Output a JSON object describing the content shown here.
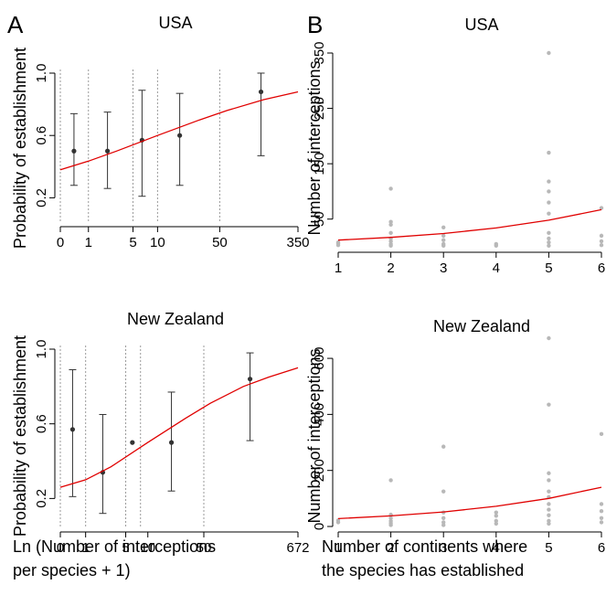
{
  "figure": {
    "panel_labels": [
      "A",
      "B"
    ],
    "xlabel_a_line1": "Ln (Number of interceptions",
    "xlabel_a_line2": "per species + 1)",
    "xlabel_b_line1": "Number of continents where",
    "xlabel_b_line2": "the species has established"
  },
  "chart_data": [
    {
      "id": "A-USA",
      "type": "scatter",
      "title": "USA",
      "ylabel": "Probability of establishment",
      "xlabel": "",
      "x_scale": "log(x+1)",
      "xlim": [
        0,
        350
      ],
      "ylim": [
        0.05,
        1.0
      ],
      "x_ticks": [
        0,
        1,
        5,
        10,
        50,
        350
      ],
      "x_tick_labels": [
        "0",
        "1",
        "5",
        "10",
        "50",
        "350"
      ],
      "y_ticks": [
        0.2,
        0.6,
        1.0
      ],
      "y_tick_labels": [
        "0.2",
        "0.6",
        "1.0"
      ],
      "bin_edges": [
        0,
        1,
        5,
        10,
        50
      ],
      "points": [
        {
          "x": 0.4,
          "y": 0.5,
          "lo": 0.28,
          "hi": 0.74
        },
        {
          "x": 2.2,
          "y": 0.5,
          "lo": 0.26,
          "hi": 0.75
        },
        {
          "x": 6.5,
          "y": 0.57,
          "lo": 0.21,
          "hi": 0.89
        },
        {
          "x": 18,
          "y": 0.6,
          "lo": 0.28,
          "hi": 0.87
        },
        {
          "x": 140,
          "y": 0.88,
          "lo": 0.47,
          "hi": 1.0
        }
      ],
      "fit": [
        {
          "x": 0,
          "y": 0.38
        },
        {
          "x": 1,
          "y": 0.435
        },
        {
          "x": 3,
          "y": 0.5
        },
        {
          "x": 10,
          "y": 0.6
        },
        {
          "x": 30,
          "y": 0.7
        },
        {
          "x": 60,
          "y": 0.76
        },
        {
          "x": 150,
          "y": 0.83
        },
        {
          "x": 350,
          "y": 0.88
        }
      ]
    },
    {
      "id": "B-USA",
      "type": "scatter",
      "title": "USA",
      "ylabel": "Number of interceptions",
      "xlabel": "",
      "xlim": [
        1,
        6
      ],
      "ylim": [
        0,
        350
      ],
      "x_ticks": [
        1,
        2,
        3,
        4,
        5,
        6
      ],
      "y_ticks": [
        50,
        150,
        250,
        350
      ],
      "points": [
        {
          "x": 1,
          "y": 3
        },
        {
          "x": 1,
          "y": 6
        },
        {
          "x": 1,
          "y": 8
        },
        {
          "x": 2,
          "y": 2
        },
        {
          "x": 2,
          "y": 5
        },
        {
          "x": 2,
          "y": 10
        },
        {
          "x": 2,
          "y": 15
        },
        {
          "x": 2,
          "y": 25
        },
        {
          "x": 2,
          "y": 40
        },
        {
          "x": 2,
          "y": 45
        },
        {
          "x": 2,
          "y": 105
        },
        {
          "x": 3,
          "y": 2
        },
        {
          "x": 3,
          "y": 5
        },
        {
          "x": 3,
          "y": 12
        },
        {
          "x": 3,
          "y": 20
        },
        {
          "x": 3,
          "y": 35
        },
        {
          "x": 4,
          "y": 2
        },
        {
          "x": 4,
          "y": 5
        },
        {
          "x": 5,
          "y": 2
        },
        {
          "x": 5,
          "y": 8
        },
        {
          "x": 5,
          "y": 15
        },
        {
          "x": 5,
          "y": 25
        },
        {
          "x": 5,
          "y": 60
        },
        {
          "x": 5,
          "y": 80
        },
        {
          "x": 5,
          "y": 100
        },
        {
          "x": 5,
          "y": 118
        },
        {
          "x": 5,
          "y": 170
        },
        {
          "x": 5,
          "y": 350
        },
        {
          "x": 6,
          "y": 3
        },
        {
          "x": 6,
          "y": 10
        },
        {
          "x": 6,
          "y": 20
        },
        {
          "x": 6,
          "y": 70
        }
      ],
      "fit": [
        {
          "x": 1,
          "y": 12
        },
        {
          "x": 2,
          "y": 17
        },
        {
          "x": 3,
          "y": 24
        },
        {
          "x": 4,
          "y": 34
        },
        {
          "x": 5,
          "y": 48
        },
        {
          "x": 6,
          "y": 67
        }
      ]
    },
    {
      "id": "A-NZ",
      "type": "scatter",
      "title": "New Zealand",
      "ylabel": "Probability of establishment",
      "xlabel": "Ln (Number of interceptions per species + 1)",
      "x_scale": "log(x+1)",
      "xlim": [
        0,
        672
      ],
      "ylim": [
        0.05,
        1.0
      ],
      "x_ticks": [
        0,
        1,
        5,
        10,
        50,
        672
      ],
      "x_tick_labels": [
        "0",
        "1",
        "5",
        "10",
        "50",
        "672"
      ],
      "y_ticks": [
        0.2,
        0.6,
        1.0
      ],
      "y_tick_labels": [
        "0.2",
        "0.6",
        "1.0"
      ],
      "bin_edges": [
        0,
        1,
        5,
        8,
        50
      ],
      "points": [
        {
          "x": 0.4,
          "y": 0.57,
          "lo": 0.21,
          "hi": 0.89
        },
        {
          "x": 2.2,
          "y": 0.34,
          "lo": 0.12,
          "hi": 0.65
        },
        {
          "x": 6.2,
          "y": 0.5,
          "lo": 0.5,
          "hi": 0.5
        },
        {
          "x": 20,
          "y": 0.5,
          "lo": 0.24,
          "hi": 0.77
        },
        {
          "x": 180,
          "y": 0.84,
          "lo": 0.51,
          "hi": 0.98
        }
      ],
      "fit": [
        {
          "x": 0,
          "y": 0.26
        },
        {
          "x": 1,
          "y": 0.3
        },
        {
          "x": 3,
          "y": 0.37
        },
        {
          "x": 10,
          "y": 0.5
        },
        {
          "x": 30,
          "y": 0.63
        },
        {
          "x": 60,
          "y": 0.71
        },
        {
          "x": 150,
          "y": 0.8
        },
        {
          "x": 300,
          "y": 0.85
        },
        {
          "x": 672,
          "y": 0.9
        }
      ]
    },
    {
      "id": "B-NZ",
      "type": "scatter",
      "title": "New Zealand",
      "ylabel": "Number of interceptions",
      "xlabel": "Number of continents where the species has established",
      "xlim": [
        1,
        6
      ],
      "ylim": [
        0,
        672
      ],
      "x_ticks": [
        1,
        2,
        3,
        4,
        5,
        6
      ],
      "y_ticks": [
        0,
        200,
        400,
        600
      ],
      "points": [
        {
          "x": 1,
          "y": 15
        },
        {
          "x": 1,
          "y": 22
        },
        {
          "x": 2,
          "y": 5
        },
        {
          "x": 2,
          "y": 12
        },
        {
          "x": 2,
          "y": 20
        },
        {
          "x": 2,
          "y": 30
        },
        {
          "x": 2,
          "y": 42
        },
        {
          "x": 2,
          "y": 165
        },
        {
          "x": 3,
          "y": 5
        },
        {
          "x": 3,
          "y": 15
        },
        {
          "x": 3,
          "y": 30
        },
        {
          "x": 3,
          "y": 50
        },
        {
          "x": 3,
          "y": 125
        },
        {
          "x": 3,
          "y": 285
        },
        {
          "x": 4,
          "y": 10
        },
        {
          "x": 4,
          "y": 20
        },
        {
          "x": 4,
          "y": 38
        },
        {
          "x": 4,
          "y": 50
        },
        {
          "x": 5,
          "y": 10
        },
        {
          "x": 5,
          "y": 20
        },
        {
          "x": 5,
          "y": 40
        },
        {
          "x": 5,
          "y": 60
        },
        {
          "x": 5,
          "y": 80
        },
        {
          "x": 5,
          "y": 105
        },
        {
          "x": 5,
          "y": 125
        },
        {
          "x": 5,
          "y": 165
        },
        {
          "x": 5,
          "y": 190
        },
        {
          "x": 5,
          "y": 435
        },
        {
          "x": 5,
          "y": 672
        },
        {
          "x": 6,
          "y": 15
        },
        {
          "x": 6,
          "y": 30
        },
        {
          "x": 6,
          "y": 55
        },
        {
          "x": 6,
          "y": 80
        },
        {
          "x": 6,
          "y": 330
        }
      ],
      "fit": [
        {
          "x": 1,
          "y": 28
        },
        {
          "x": 2,
          "y": 38
        },
        {
          "x": 3,
          "y": 52
        },
        {
          "x": 4,
          "y": 72
        },
        {
          "x": 5,
          "y": 100
        },
        {
          "x": 6,
          "y": 140
        }
      ]
    }
  ]
}
